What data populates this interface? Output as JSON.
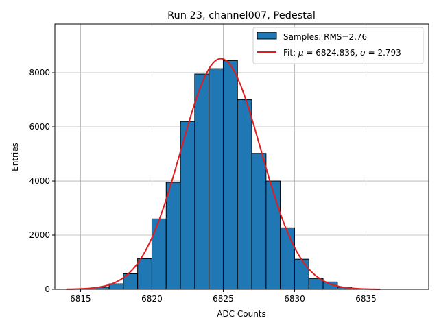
{
  "chart_data": {
    "type": "bar",
    "title": "Run 23, channel007, Pedestal",
    "xlabel": "ADC Counts",
    "ylabel": "Entries",
    "xlim": [
      6813.2,
      6839.4
    ],
    "ylim": [
      0,
      9800
    ],
    "xticks": [
      6815,
      6820,
      6825,
      6830,
      6835
    ],
    "yticks": [
      0,
      2000,
      4000,
      6000,
      8000
    ],
    "grid": true,
    "legend_position": "top-right",
    "histogram": {
      "name": "Samples: RMS=2.76",
      "color": "#1f77b4",
      "bin_width": 1,
      "bin_starts": [
        6816,
        6817,
        6818,
        6819,
        6820,
        6821,
        6822,
        6823,
        6824,
        6825,
        6826,
        6827,
        6828,
        6829,
        6830,
        6831,
        6832,
        6833,
        6834
      ],
      "counts": [
        80,
        200,
        570,
        1130,
        2600,
        3950,
        6200,
        7950,
        8150,
        8450,
        7000,
        5020,
        4000,
        2270,
        1110,
        400,
        270,
        80,
        20
      ]
    },
    "fit": {
      "name_prefix": "Fit: ",
      "mu_symbol": "μ",
      "mu_value": " = 6824.836, ",
      "sigma_symbol": "σ",
      "sigma_value": " = 2.793",
      "color": "#e41a1c",
      "mu": 6824.836,
      "sigma": 2.793,
      "amplitude": 8520,
      "x_range": [
        6814,
        6836
      ]
    }
  }
}
